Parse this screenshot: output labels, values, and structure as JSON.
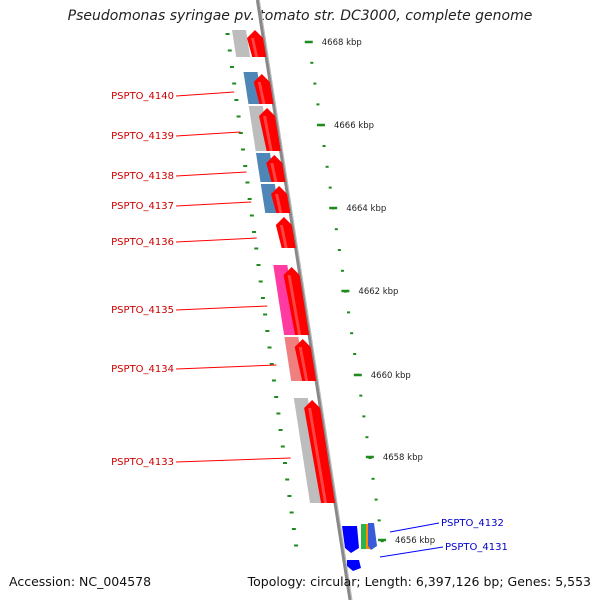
{
  "header": {
    "title": "Pseudomonas syringae pv. tomato str. DC3000, complete genome"
  },
  "footer": {
    "accession": "Accession: NC_004578",
    "summary": "Topology: circular; Length: 6,397,126 bp; Genes: 5,553"
  },
  "map": {
    "tick_labels": [
      "4668 kbp",
      "4666 kbp",
      "4664 kbp",
      "4662 kbp",
      "4660 kbp",
      "4658 kbp",
      "4656 kbp"
    ],
    "genes_reverse": [
      "PSPTO_4140",
      "PSPTO_4139",
      "PSPTO_4138",
      "PSPTO_4137",
      "PSPTO_4136",
      "PSPTO_4135",
      "PSPTO_4134",
      "PSPTO_4133"
    ],
    "genes_forward": [
      "PSPTO_4132",
      "PSPTO_4131"
    ],
    "colors": {
      "backbone": "#888888",
      "reverse_strand": "#ff0000",
      "forward_strand": "#0000ff",
      "ticks": "#1f8a1f",
      "label_reverse": "#cc0000",
      "label_forward": "#0000cc",
      "cog_grey": "#bdbdbd",
      "cog_blue": "#4f86b8",
      "cog_pink": "#ff3aa0",
      "cog_salmon": "#f08080",
      "cog_green": "#2db34a",
      "cog_orange": "#ff8c00"
    }
  }
}
